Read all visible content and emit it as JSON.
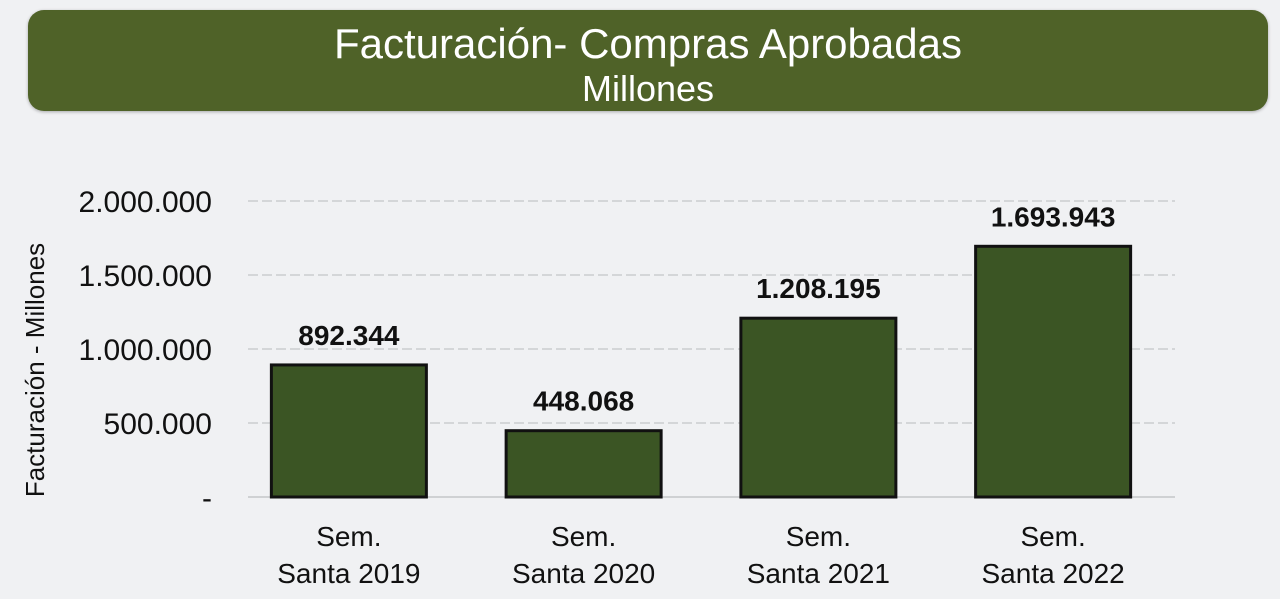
{
  "chart_data": {
    "type": "bar",
    "title": "Facturación- Compras Aprobadas",
    "subtitle": "Millones",
    "ylabel": "Facturación - Millones",
    "xlabel": "",
    "categories": [
      [
        "Sem.",
        "Santa 2019"
      ],
      [
        "Sem.",
        "Santa 2020"
      ],
      [
        "Sem.",
        "Santa 2021"
      ],
      [
        "Sem.",
        "Santa 2022"
      ]
    ],
    "values": [
      892344,
      448068,
      1208195,
      1693943
    ],
    "data_labels": [
      "892.344",
      "448.068",
      "1.208.195",
      "1.693.943"
    ],
    "ylim": [
      0,
      2000000
    ],
    "yticks": [
      0,
      500000,
      1000000,
      1500000,
      2000000
    ],
    "ytick_labels": [
      "-",
      "500.000",
      "1.000.000",
      "1.500.000",
      "2.000.000"
    ],
    "grid": true,
    "legend": "none",
    "colors": {
      "bar": "#3b5524",
      "bar_border": "#111111",
      "banner": "#4f6228"
    }
  }
}
